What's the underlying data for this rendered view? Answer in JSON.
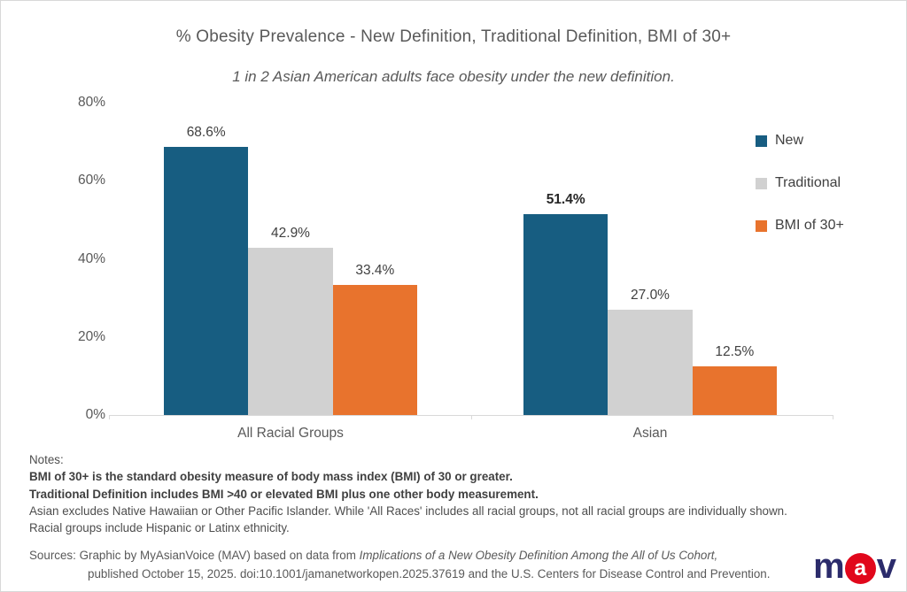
{
  "chart_data": {
    "type": "bar",
    "title": "% Obesity Prevalence -  New Definition, Traditional Definition, BMI of 30+",
    "subtitle": "1 in 2 Asian American adults face obesity under the new definition.",
    "categories": [
      "All Racial Groups",
      "Asian"
    ],
    "series": [
      {
        "name": "New",
        "color": "#175d81",
        "values": [
          68.6,
          51.4
        ]
      },
      {
        "name": "Traditional",
        "color": "#d1d1d1",
        "values": [
          42.9,
          27.0
        ]
      },
      {
        "name": "BMI of 30+",
        "color": "#e8732d",
        "values": [
          33.4,
          12.5
        ]
      }
    ],
    "data_labels": [
      [
        "68.6%",
        "42.9%",
        "33.4%"
      ],
      [
        "51.4%",
        "27.0%",
        "12.5%"
      ]
    ],
    "data_label_bold": [
      [
        false,
        false,
        false
      ],
      [
        true,
        false,
        false
      ]
    ],
    "y_ticks": [
      "80%",
      "60%",
      "40%",
      "20%",
      "0%"
    ],
    "ylim": [
      0,
      80
    ],
    "grid": false,
    "legend_position": "right"
  },
  "notes": {
    "heading": "Notes:",
    "lines": [
      {
        "text": "BMI of 30+  is the standard obesity measure of body mass index (BMI) of 30 or greater.",
        "bold": true
      },
      {
        "text": "Traditional Definition includes BMI >40 or elevated BMI plus one other body measurement.",
        "bold": true
      },
      {
        "text": "Asian excludes Native Hawaiian or Other Pacific Islander.  While 'All Races' includes all racial groups, not all racial groups are individually shown.",
        "bold": false
      },
      {
        "text": "Racial groups include Hispanic or Latinx ethnicity.",
        "bold": false
      }
    ]
  },
  "sources": {
    "line1_prefix": "Sources: Graphic by MyAsianVoice (MAV) based on data from ",
    "line1_italic": "Implications of a New Obesity Definition Among the All of Us Cohort,",
    "line2": "published October 15, 2025. doi:10.1001/jamanetworkopen.2025.37619 and the U.S. Centers for Disease Control and Prevention."
  },
  "logo": {
    "letter_m": "m",
    "letter_a": "a",
    "letter_v": "v",
    "navy": "#2b2b6b",
    "red": "#e1071b"
  }
}
